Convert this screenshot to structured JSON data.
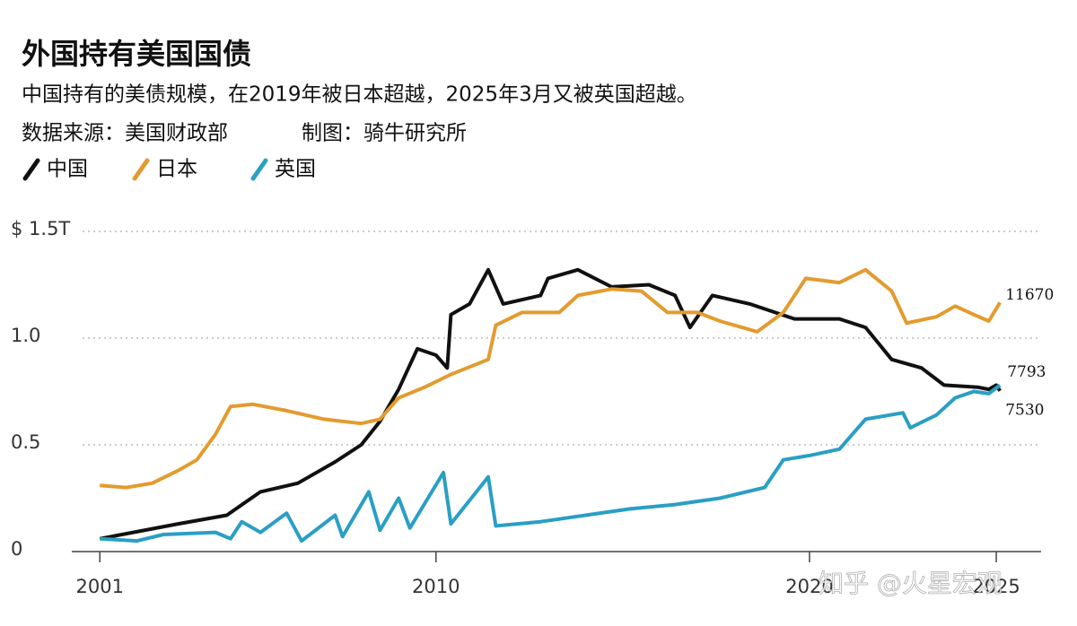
{
  "chart_data": {
    "type": "line",
    "title": "外国持有美国国债",
    "subtitle": "中国持有的美债规模，在2019年被日本超越，2025年3月又被英国超越。",
    "source": "数据来源：美国财政部",
    "credit": "制图：骑牛研究所",
    "watermark": "知乎 @火星宏观",
    "xlim": [
      2000,
      2026.2
    ],
    "xticks": [
      2001,
      2010,
      2020,
      2025
    ],
    "ylim": [
      0,
      1.5
    ],
    "yticks": [
      0,
      {
        "value": 0.5,
        "label": "0.5"
      },
      {
        "value": 1,
        "label": "1.0"
      },
      {
        "value": 1.5,
        "label": "$ 1.5T"
      }
    ],
    "grid": true,
    "series": [
      {
        "name": "中国",
        "color": "#111111",
        "x": [
          2001,
          2003.1,
          2004.4,
          2005.3,
          2006.3,
          2007.3,
          2008,
          2008.5,
          2009,
          2009.5,
          2010,
          2010.3,
          2010.4,
          2010.9,
          2011.4,
          2011.8,
          2012.8,
          2013,
          2013.8,
          2014.7,
          2015.7,
          2016.4,
          2016.8,
          2017.4,
          2018.4,
          2019.6,
          2020.8,
          2021.5,
          2022.2,
          2023,
          2023.6,
          2024.5,
          2024.8,
          2025,
          2025.1
        ],
        "values": [
          0.06,
          0.13,
          0.17,
          0.28,
          0.32,
          0.42,
          0.5,
          0.61,
          0.76,
          0.95,
          0.92,
          0.86,
          1.11,
          1.16,
          1.32,
          1.16,
          1.2,
          1.28,
          1.32,
          1.24,
          1.25,
          1.2,
          1.05,
          1.2,
          1.16,
          1.09,
          1.09,
          1.05,
          0.9,
          0.86,
          0.78,
          0.77,
          0.76,
          0.78,
          0.753
        ],
        "value_labels": [
          null,
          null,
          null,
          null,
          null,
          null,
          null,
          null,
          null,
          null,
          null,
          null,
          null,
          null,
          null,
          null,
          null,
          null,
          null,
          null,
          null,
          null,
          null,
          null,
          null,
          null,
          null,
          null,
          null,
          null,
          null,
          null,
          null,
          null,
          "7530"
        ]
      },
      {
        "name": "日本",
        "color": "#e39b2f",
        "x": [
          2001,
          2001.7,
          2002.4,
          2003.1,
          2003.6,
          2004.1,
          2004.5,
          2005.1,
          2006,
          2007,
          2008,
          2008.5,
          2009,
          2009.7,
          2010.4,
          2011.4,
          2011.6,
          2012.3,
          2013.3,
          2013.8,
          2014.7,
          2015.5,
          2016.2,
          2017,
          2017.6,
          2018.6,
          2019.3,
          2019.9,
          2020.8,
          2021.5,
          2022.2,
          2022.6,
          2023.4,
          2023.9,
          2024.4,
          2024.8,
          2025.1
        ],
        "values": [
          0.31,
          0.3,
          0.32,
          0.38,
          0.43,
          0.55,
          0.68,
          0.69,
          0.66,
          0.62,
          0.6,
          0.62,
          0.72,
          0.77,
          0.83,
          0.9,
          1.06,
          1.12,
          1.12,
          1.2,
          1.23,
          1.22,
          1.12,
          1.12,
          1.08,
          1.03,
          1.12,
          1.28,
          1.26,
          1.32,
          1.22,
          1.07,
          1.1,
          1.15,
          1.11,
          1.08,
          1.167
        ],
        "value_labels": [
          null,
          null,
          null,
          null,
          null,
          null,
          null,
          null,
          null,
          null,
          null,
          null,
          null,
          null,
          null,
          null,
          null,
          null,
          null,
          null,
          null,
          null,
          null,
          null,
          null,
          null,
          null,
          null,
          null,
          null,
          null,
          null,
          null,
          null,
          null,
          null,
          "11670"
        ]
      },
      {
        "name": "英国",
        "color": "#2a9fc4",
        "x": [
          2001,
          2002,
          2002.7,
          2004.1,
          2004.5,
          2004.8,
          2005.3,
          2006,
          2006.4,
          2007.3,
          2007.5,
          2008.2,
          2008.5,
          2009,
          2009.3,
          2010.2,
          2010.4,
          2011.4,
          2011.6,
          2012.8,
          2014,
          2015.2,
          2016.4,
          2017.6,
          2018.8,
          2019.3,
          2020,
          2020.8,
          2021.5,
          2022.5,
          2022.7,
          2023.4,
          2023.9,
          2024.4,
          2024.8,
          2025.1
        ],
        "values": [
          0.06,
          0.05,
          0.08,
          0.09,
          0.06,
          0.14,
          0.09,
          0.18,
          0.05,
          0.17,
          0.07,
          0.28,
          0.1,
          0.25,
          0.11,
          0.37,
          0.13,
          0.35,
          0.12,
          0.14,
          0.17,
          0.2,
          0.22,
          0.25,
          0.3,
          0.43,
          0.45,
          0.48,
          0.62,
          0.65,
          0.58,
          0.64,
          0.72,
          0.75,
          0.74,
          0.7793
        ],
        "value_labels": [
          null,
          null,
          null,
          null,
          null,
          null,
          null,
          null,
          null,
          null,
          null,
          null,
          null,
          null,
          null,
          null,
          null,
          null,
          null,
          null,
          null,
          null,
          null,
          null,
          null,
          null,
          null,
          null,
          null,
          null,
          null,
          null,
          null,
          null,
          null,
          "7793"
        ]
      }
    ]
  }
}
